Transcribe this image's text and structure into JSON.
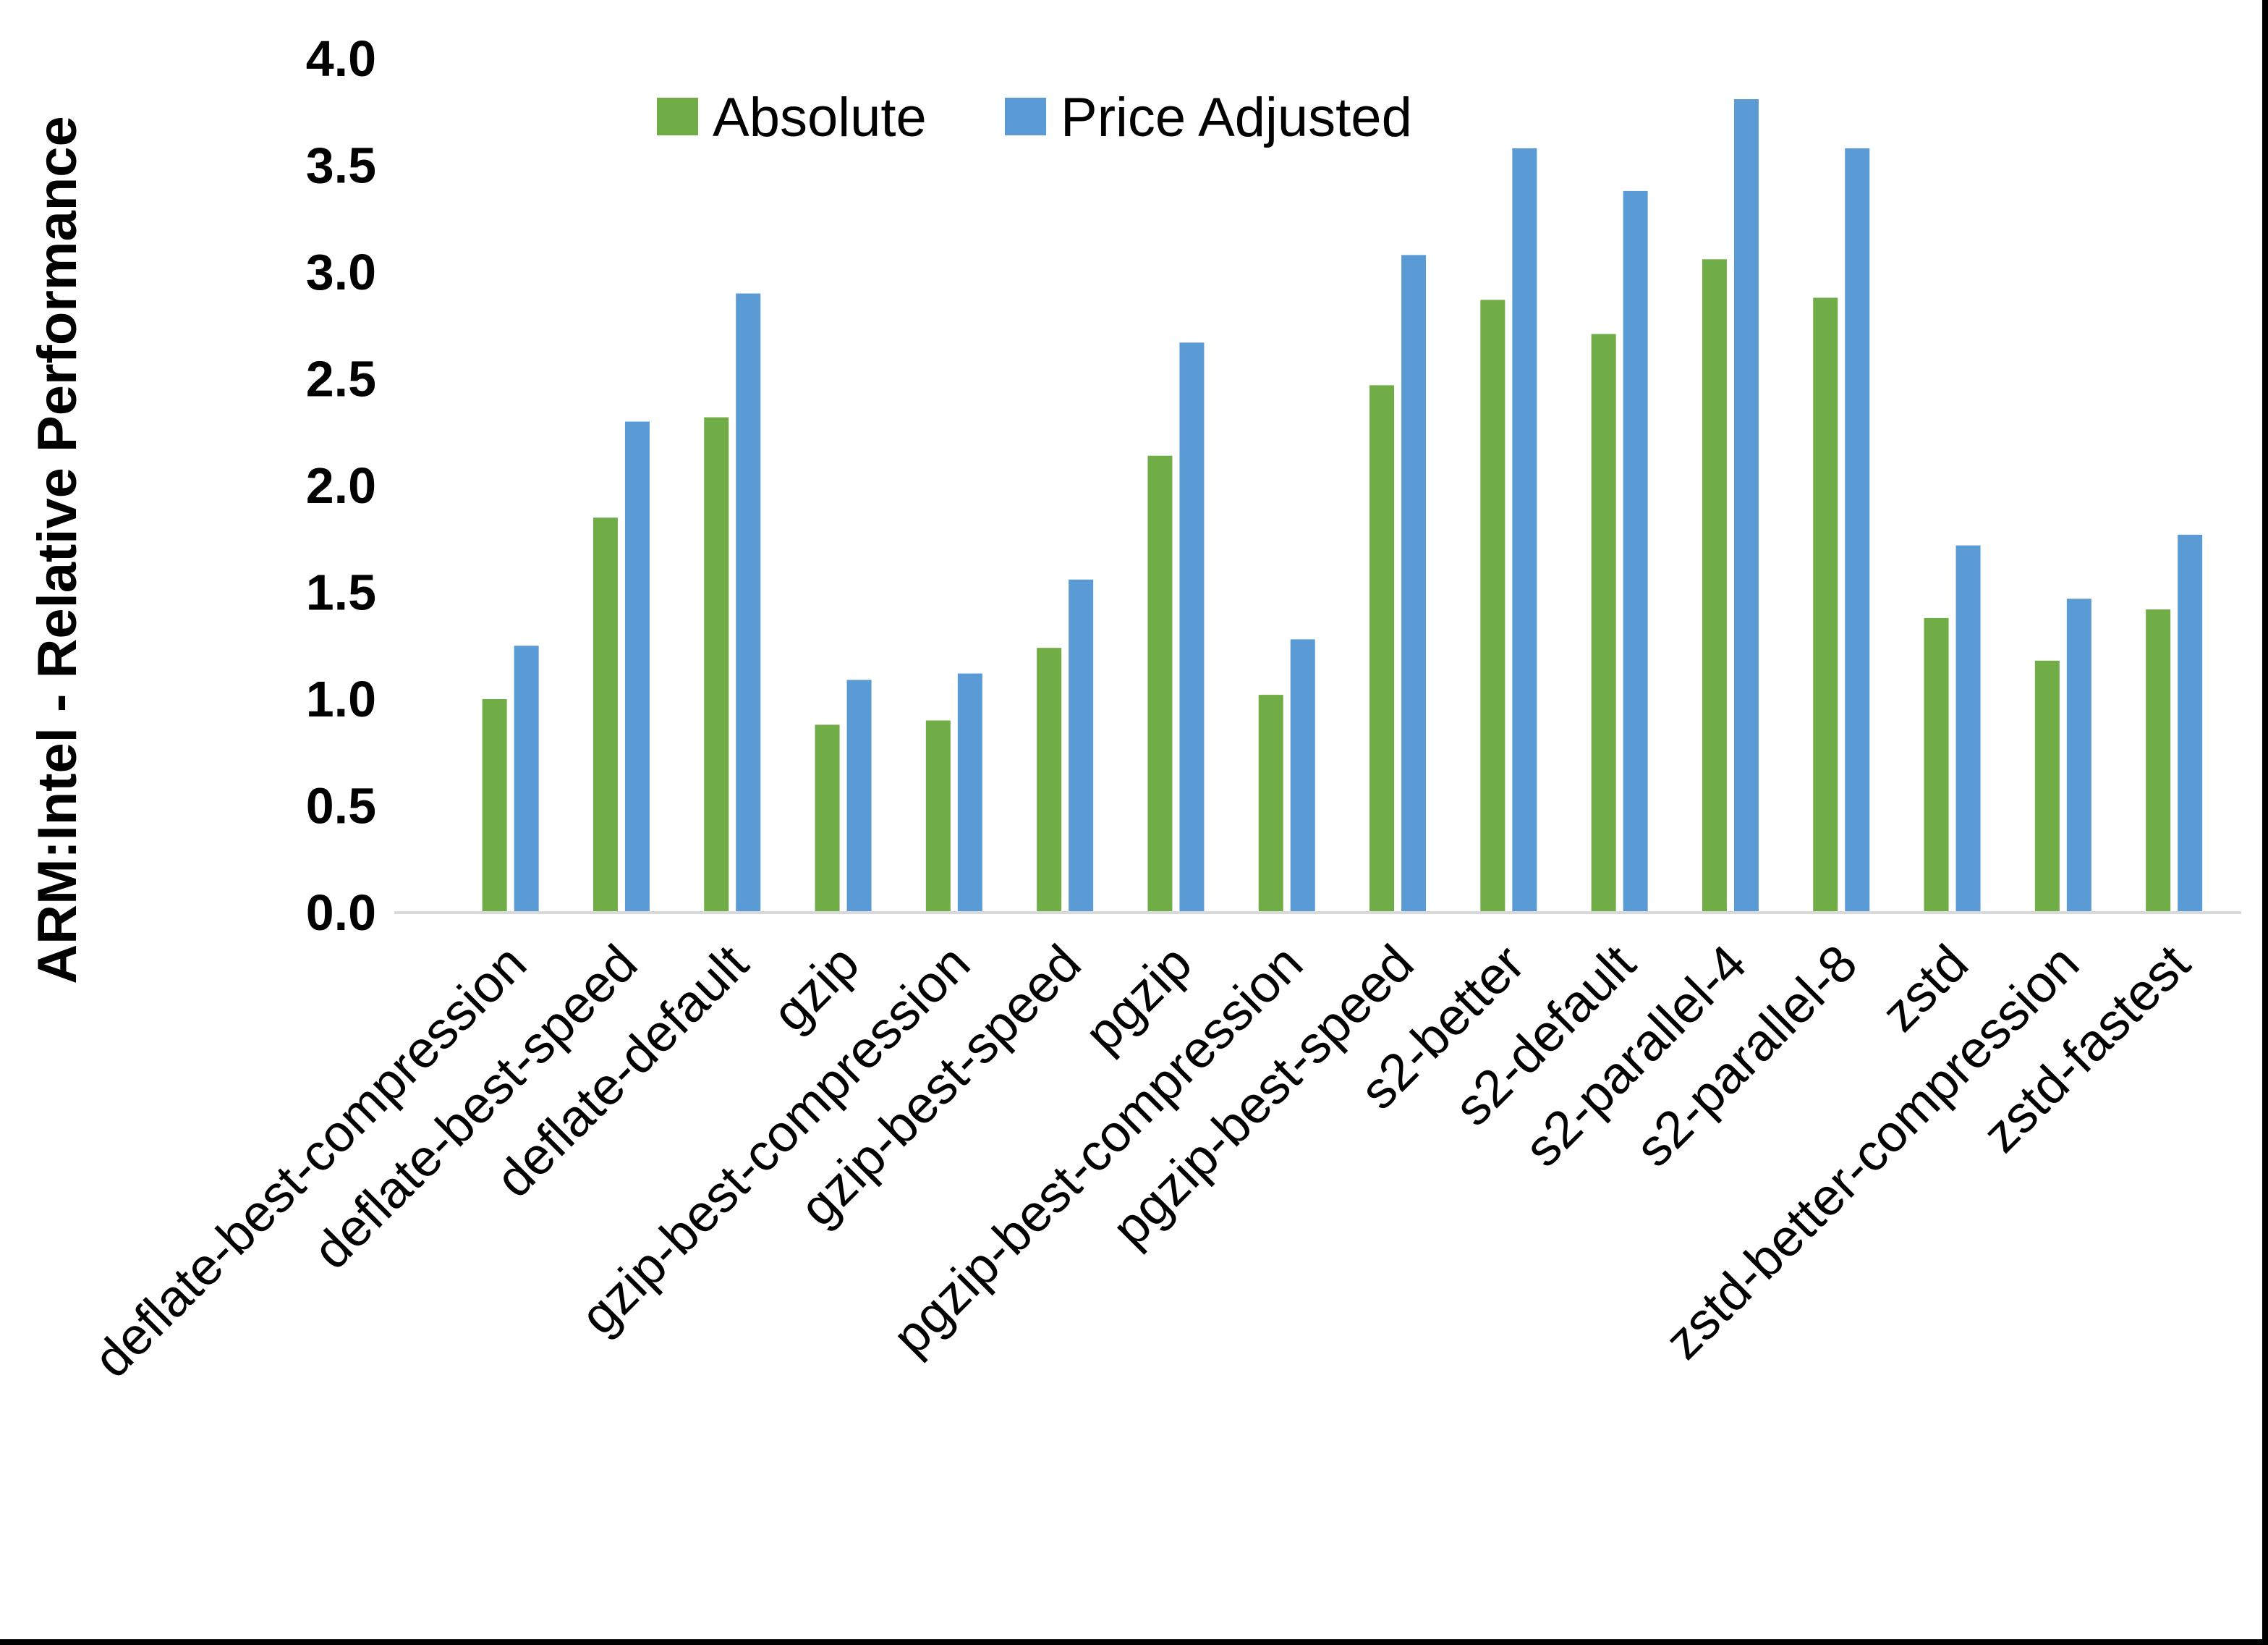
{
  "chart_data": {
    "type": "bar",
    "title": "",
    "ylabel": "ARM:Intel - Relative Performance",
    "xlabel": "",
    "ylim": [
      0.0,
      4.0
    ],
    "ytick_step": 0.5,
    "yticks": [
      "0.0",
      "0.5",
      "1.0",
      "1.5",
      "2.0",
      "2.5",
      "3.0",
      "3.5",
      "4.0"
    ],
    "grid": false,
    "legend_position": "top-center",
    "axis_line_color": "#D9D9D9",
    "text_color": "#000000",
    "categories": [
      "deflate-best-compression",
      "deflate-best-speed",
      "deflate-default",
      "gzip",
      "gzip-best-compression",
      "gzip-best-speed",
      "pgzip",
      "pgzip-best-compression",
      "pgzip-best-speed",
      "s2-better",
      "s2-default",
      "s2-parallel-4",
      "s2-parallel-8",
      "zstd",
      "zstd-better-compression",
      "zstd-fastest"
    ],
    "series": [
      {
        "name": "Absolute",
        "color": "#70AD47",
        "values": [
          1.0,
          1.85,
          2.32,
          0.88,
          0.9,
          1.24,
          2.14,
          1.02,
          2.47,
          2.87,
          2.71,
          3.06,
          2.88,
          1.38,
          1.18,
          1.42
        ]
      },
      {
        "name": "Price Adjusted",
        "color": "#5B9BD5",
        "values": [
          1.25,
          2.3,
          2.9,
          1.09,
          1.12,
          1.56,
          2.67,
          1.28,
          3.08,
          3.58,
          3.38,
          3.81,
          3.58,
          1.72,
          1.47,
          1.77
        ]
      }
    ]
  }
}
